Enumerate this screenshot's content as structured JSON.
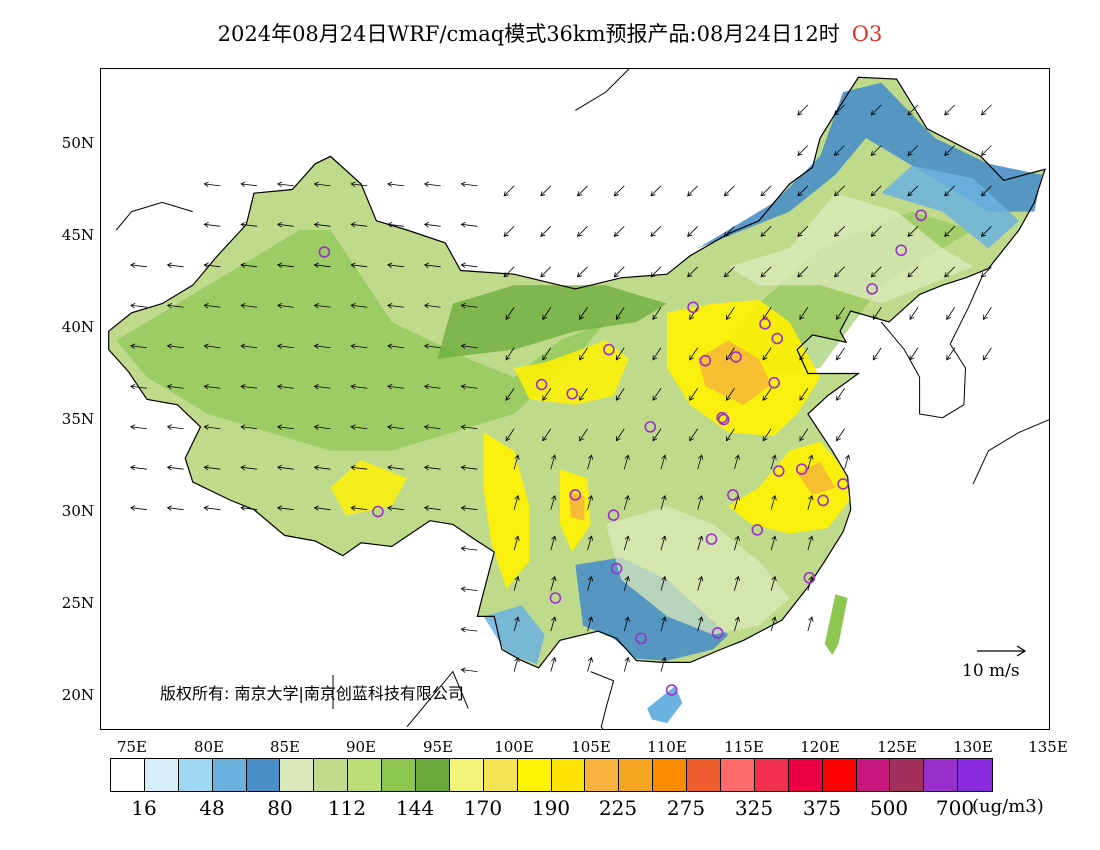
{
  "title": {
    "main": "2024年08月24日WRF/cmaq模式36km预报产品:08月24日12时",
    "species": "O3"
  },
  "axes": {
    "latitudes": [
      "50N",
      "45N",
      "40N",
      "35N",
      "30N",
      "25N",
      "20N"
    ],
    "longitudes": [
      "75E",
      "80E",
      "85E",
      "90E",
      "95E",
      "100E",
      "105E",
      "110E",
      "115E",
      "120E",
      "125E",
      "130E",
      "135E"
    ]
  },
  "copyright": "版权所有: 南京大学|南京创蓝科技有限公司",
  "wind_scale": "10 m/s",
  "legend": {
    "colors": [
      "#ffffff",
      "#d6effa",
      "#9fd8f3",
      "#6cb2df",
      "#4a8fc8",
      "#dbe8b9",
      "#c0da8c",
      "#b9df76",
      "#8dc752",
      "#6aa93a",
      "#f2f57a",
      "#f5e356",
      "#fff200",
      "#fde200",
      "#f7b23b",
      "#f6a623",
      "#fb8c00",
      "#f05c2e",
      "#ff6b6b",
      "#f0304e",
      "#ee0044",
      "#ff0000",
      "#c8187f",
      "#a22e5a",
      "#9a30cc",
      "#8a2be2"
    ],
    "labels": [
      "16",
      "48",
      "80",
      "112",
      "144",
      "170",
      "190",
      "225",
      "275",
      "325",
      "375",
      "500",
      "700"
    ],
    "unit": "(ug/m3)"
  },
  "map": {
    "colors": {
      "low_blue": "#6cb2df",
      "mid_blue": "#4a8fc8",
      "pale_green": "#dbe8b9",
      "light_green": "#c0da8c",
      "green": "#8dc752",
      "dark_green": "#6aa93a",
      "yellow": "#fff200",
      "orange": "#f7b23b",
      "station_ring": "#9a30cc"
    }
  }
}
